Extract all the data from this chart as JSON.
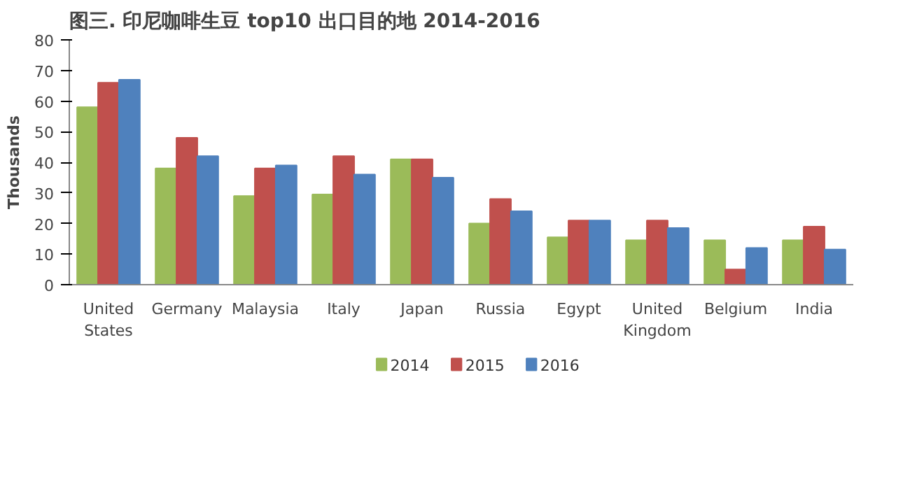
{
  "chart_data": {
    "type": "bar",
    "title": "图三. 印尼咖啡生豆 top10 出口目的地  2014-2016",
    "ylabel": "Thousands",
    "categories": [
      "United States",
      "Germany",
      "Malaysia",
      "Italy",
      "Japan",
      "Russia",
      "Egypt",
      "United Kingdom",
      "Belgium",
      "India"
    ],
    "series": [
      {
        "name": "2014",
        "color": "#9bbb59",
        "values": [
          58,
          38,
          29,
          29.5,
          41,
          20,
          15.5,
          14.5,
          14.5,
          14.5
        ]
      },
      {
        "name": "2015",
        "color": "#c0504d",
        "values": [
          66,
          48,
          38,
          42,
          41,
          28,
          21,
          21,
          5,
          19
        ]
      },
      {
        "name": "2016",
        "color": "#4f81bd",
        "values": [
          67,
          42,
          39,
          36,
          35,
          24,
          21,
          18.5,
          12,
          11.5
        ]
      }
    ],
    "ylim": [
      0,
      80
    ],
    "yticks": [
      0,
      10,
      20,
      30,
      40,
      50,
      60,
      70,
      80
    ],
    "grid": false,
    "legend": "bottom"
  }
}
